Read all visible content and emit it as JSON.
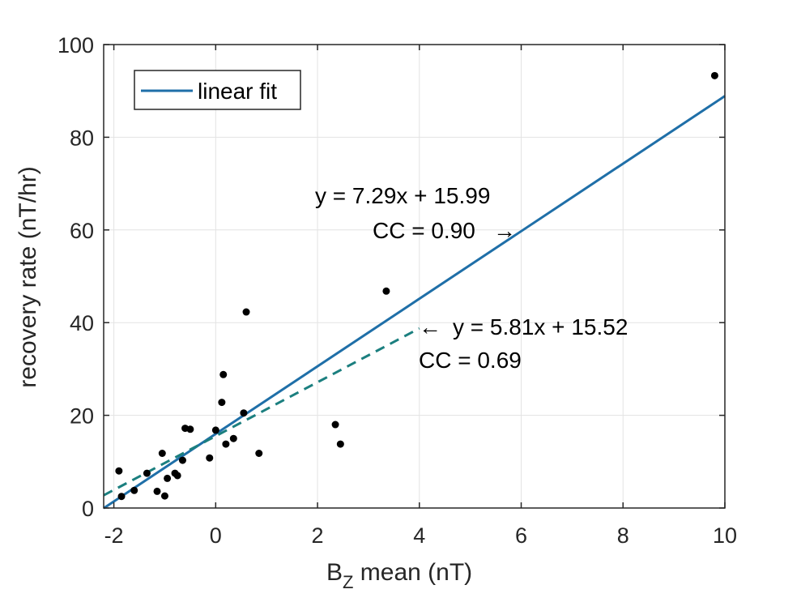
{
  "chart_data": {
    "type": "scatter",
    "xlabel_base": "B",
    "xlabel_sub": "Z",
    "xlabel_rest": " mean (nT)",
    "ylabel": "recovery rate (nT/hr)",
    "xlim": [
      -2.2,
      10
    ],
    "ylim": [
      0,
      100
    ],
    "xticks": [
      -2,
      0,
      2,
      4,
      6,
      8,
      10
    ],
    "yticks": [
      0,
      20,
      40,
      60,
      80,
      100
    ],
    "xtick_labels": [
      "-2",
      "0",
      "2",
      "4",
      "6",
      "8",
      "10"
    ],
    "ytick_labels": [
      "0",
      "20",
      "40",
      "60",
      "80",
      "100"
    ],
    "grid": true,
    "legend_position": "top-left",
    "colors": {
      "points": "#000000",
      "fit": "#1f6fa8",
      "fit2": "#1b7f7f",
      "grid": "#e3e3e3",
      "axis": "#262626"
    },
    "points": [
      [
        -1.9,
        8.0
      ],
      [
        -1.85,
        2.5
      ],
      [
        -1.6,
        3.8
      ],
      [
        -1.35,
        7.5
      ],
      [
        -1.15,
        3.6
      ],
      [
        -1.05,
        11.8
      ],
      [
        -1.0,
        2.6
      ],
      [
        -0.95,
        6.4
      ],
      [
        -0.8,
        7.5
      ],
      [
        -0.75,
        7.0
      ],
      [
        -0.65,
        10.3
      ],
      [
        -0.6,
        17.2
      ],
      [
        -0.5,
        17.0
      ],
      [
        -0.12,
        10.8
      ],
      [
        0.0,
        16.8
      ],
      [
        0.12,
        22.8
      ],
      [
        0.15,
        28.8
      ],
      [
        0.2,
        13.8
      ],
      [
        0.35,
        15.0
      ],
      [
        0.55,
        20.5
      ],
      [
        0.6,
        42.3
      ],
      [
        0.85,
        11.8
      ],
      [
        2.35,
        18.0
      ],
      [
        2.45,
        13.8
      ],
      [
        3.35,
        46.8
      ],
      [
        9.8,
        93.3
      ]
    ],
    "fits": [
      {
        "name": "linear fit",
        "slope": 7.29,
        "intercept": 15.99,
        "x_range": [
          -2.2,
          10
        ],
        "style": "solid"
      },
      {
        "slope": 5.81,
        "intercept": 15.52,
        "x_range": [
          -2.2,
          4.0
        ],
        "style": "dashed"
      }
    ],
    "legend": {
      "entries": [
        "linear fit"
      ]
    },
    "annotations": [
      {
        "lines": [
          "y = 7.29x + 15.99",
          "CC = 0.90"
        ],
        "arrow": "→"
      },
      {
        "lines": [
          "y = 5.81x + 15.52",
          "CC = 0.69"
        ],
        "arrow": "←"
      }
    ]
  }
}
